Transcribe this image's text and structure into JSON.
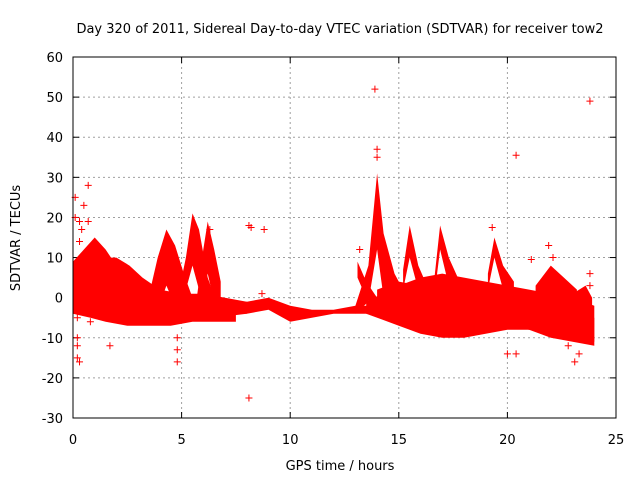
{
  "chart_data": {
    "type": "scatter",
    "title": "Day 320 of 2011, Sidereal Day-to-day VTEC variation (SDTVAR) for receiver tow2",
    "xlabel": "GPS time / hours",
    "ylabel": "SDTVAR / TECUs",
    "xlim": [
      0,
      25
    ],
    "ylim": [
      -30,
      60
    ],
    "xticks": [
      "0",
      "5",
      "10",
      "15",
      "20",
      "25"
    ],
    "yticks": [
      "-30",
      "-20",
      "-10",
      "0",
      "10",
      "20",
      "30",
      "40",
      "50",
      "60"
    ],
    "grid": true,
    "marker": "+",
    "color": "#ff0000",
    "bands": [
      {
        "name": "track-early-a",
        "upper": [
          [
            0,
            9
          ],
          [
            0.5,
            12
          ],
          [
            1,
            15
          ],
          [
            1.5,
            12
          ],
          [
            2,
            8
          ],
          [
            3,
            4
          ],
          [
            4,
            2
          ],
          [
            5,
            1
          ],
          [
            6,
            1
          ],
          [
            7,
            0
          ],
          [
            8,
            -1
          ]
        ],
        "lower": [
          [
            8,
            -4
          ],
          [
            7,
            -4
          ],
          [
            6,
            -4
          ],
          [
            5,
            -5
          ],
          [
            4,
            -6
          ],
          [
            3,
            -6
          ],
          [
            2,
            -5
          ],
          [
            1,
            -4
          ],
          [
            0.5,
            -2
          ],
          [
            0,
            -1
          ]
        ]
      },
      {
        "name": "track-early-b",
        "upper": [
          [
            0,
            6
          ],
          [
            0.6,
            8
          ],
          [
            1.2,
            9
          ],
          [
            1.8,
            8
          ],
          [
            2.5,
            5
          ],
          [
            3.5,
            2
          ],
          [
            4.5,
            0
          ],
          [
            5.5,
            -1
          ],
          [
            6.5,
            -1
          ],
          [
            7.5,
            -2
          ]
        ],
        "lower": [
          [
            7.5,
            -6
          ],
          [
            6.5,
            -6
          ],
          [
            5.5,
            -6
          ],
          [
            4.5,
            -7
          ],
          [
            3.5,
            -7
          ],
          [
            2.5,
            -7
          ],
          [
            1.5,
            -6
          ],
          [
            0.8,
            -5
          ],
          [
            0,
            -4
          ]
        ]
      },
      {
        "name": "track-early-c",
        "upper": [
          [
            1.3,
            10
          ],
          [
            2,
            10
          ],
          [
            2.6,
            8
          ],
          [
            3.2,
            5
          ],
          [
            4,
            2
          ]
        ],
        "lower": [
          [
            4,
            -3
          ],
          [
            3.2,
            -1
          ],
          [
            2.6,
            1
          ],
          [
            2,
            3
          ],
          [
            1.3,
            4
          ]
        ]
      },
      {
        "name": "track-early-d",
        "upper": [
          [
            0,
            1
          ],
          [
            1,
            2
          ],
          [
            2,
            1
          ],
          [
            3,
            -1
          ],
          [
            4,
            -2
          ]
        ],
        "lower": [
          [
            4,
            -6
          ],
          [
            3,
            -6
          ],
          [
            2,
            -5
          ],
          [
            1,
            -4
          ],
          [
            0,
            -4
          ]
        ]
      },
      {
        "name": "spike-4h",
        "upper": [
          [
            3.3,
            -4
          ],
          [
            3.9,
            10
          ],
          [
            4.3,
            17
          ],
          [
            4.7,
            13
          ],
          [
            5.1,
            6
          ],
          [
            5.5,
            0
          ]
        ],
        "lower": [
          [
            5.5,
            -5
          ],
          [
            5.1,
            -4
          ],
          [
            4.7,
            -2
          ],
          [
            4.3,
            3
          ],
          [
            3.9,
            -3
          ],
          [
            3.4,
            -6
          ]
        ]
      },
      {
        "name": "spike-5.5h",
        "upper": [
          [
            4.7,
            -3
          ],
          [
            5.2,
            10
          ],
          [
            5.5,
            21
          ],
          [
            5.8,
            17
          ],
          [
            6.2,
            5
          ],
          [
            6.6,
            -1
          ]
        ],
        "lower": [
          [
            6.6,
            -5
          ],
          [
            6.2,
            -4
          ],
          [
            5.8,
            2
          ],
          [
            5.5,
            8
          ],
          [
            5.2,
            2
          ],
          [
            4.8,
            -5
          ]
        ]
      },
      {
        "name": "spike-6.2h",
        "upper": [
          [
            5.7,
            0
          ],
          [
            6.0,
            12
          ],
          [
            6.2,
            19
          ],
          [
            6.5,
            12
          ],
          [
            6.8,
            4
          ]
        ],
        "lower": [
          [
            6.8,
            -3
          ],
          [
            6.5,
            -1
          ],
          [
            6.2,
            6
          ],
          [
            6.0,
            2
          ],
          [
            5.7,
            -4
          ]
        ]
      },
      {
        "name": "track-mid",
        "upper": [
          [
            6.5,
            -1
          ],
          [
            8,
            -1
          ],
          [
            9,
            0
          ],
          [
            10,
            -2
          ],
          [
            11,
            -3
          ],
          [
            12,
            -3
          ],
          [
            13,
            -2
          ],
          [
            13.6,
            -2
          ]
        ],
        "lower": [
          [
            13.6,
            -4
          ],
          [
            13,
            -4
          ],
          [
            12,
            -4
          ],
          [
            11,
            -5
          ],
          [
            10,
            -6
          ],
          [
            9,
            -3
          ],
          [
            8,
            -4
          ],
          [
            6.5,
            -5
          ]
        ]
      },
      {
        "name": "spike-14h",
        "upper": [
          [
            13,
            -2
          ],
          [
            13.6,
            8
          ],
          [
            14.0,
            31
          ],
          [
            14.3,
            16
          ],
          [
            14.8,
            6
          ],
          [
            15.2,
            2
          ]
        ],
        "lower": [
          [
            15.2,
            -3
          ],
          [
            14.8,
            -2
          ],
          [
            14.3,
            0
          ],
          [
            14.0,
            12
          ],
          [
            13.6,
            -1
          ],
          [
            13,
            -4
          ]
        ]
      },
      {
        "name": "ramp-13.3h",
        "upper": [
          [
            13.1,
            9
          ],
          [
            13.5,
            4
          ],
          [
            14,
            0
          ]
        ],
        "lower": [
          [
            14,
            -3
          ],
          [
            13.5,
            0
          ],
          [
            13.1,
            5
          ]
        ]
      },
      {
        "name": "spike-15.5h",
        "upper": [
          [
            15.2,
            7
          ],
          [
            15.5,
            18
          ],
          [
            15.9,
            8
          ],
          [
            16.3,
            3
          ]
        ],
        "lower": [
          [
            16.3,
            -1
          ],
          [
            15.9,
            2
          ],
          [
            15.5,
            10
          ],
          [
            15.2,
            2
          ]
        ]
      },
      {
        "name": "spike-16.8h",
        "upper": [
          [
            16.6,
            3
          ],
          [
            16.9,
            18
          ],
          [
            17.3,
            10
          ],
          [
            17.8,
            4
          ]
        ],
        "lower": [
          [
            17.8,
            0
          ],
          [
            17.3,
            3
          ],
          [
            16.9,
            12
          ],
          [
            16.6,
            -1
          ]
        ]
      },
      {
        "name": "spike-19.5h",
        "upper": [
          [
            19.1,
            6
          ],
          [
            19.4,
            15
          ],
          [
            19.8,
            8
          ],
          [
            20.3,
            4
          ]
        ],
        "lower": [
          [
            20.3,
            0
          ],
          [
            19.8,
            2
          ],
          [
            19.4,
            10
          ],
          [
            19.1,
            2
          ]
        ]
      },
      {
        "name": "track-late-a",
        "upper": [
          [
            13.5,
            -1
          ],
          [
            15,
            3
          ],
          [
            16,
            5
          ],
          [
            17,
            6
          ],
          [
            18,
            5
          ],
          [
            19,
            4
          ],
          [
            20,
            3
          ],
          [
            21,
            2
          ],
          [
            22,
            1
          ],
          [
            23,
            0
          ],
          [
            24,
            -2
          ]
        ],
        "lower": [
          [
            24,
            -11
          ],
          [
            23,
            -10
          ],
          [
            22,
            -9
          ],
          [
            21,
            -8
          ],
          [
            20,
            -8
          ],
          [
            19,
            -9
          ],
          [
            18,
            -10
          ],
          [
            17,
            -10
          ],
          [
            16,
            -9
          ],
          [
            15,
            -7
          ],
          [
            13.5,
            -4
          ]
        ]
      },
      {
        "name": "track-late-b",
        "upper": [
          [
            14,
            2
          ],
          [
            15,
            4
          ],
          [
            16,
            3
          ],
          [
            17,
            1
          ],
          [
            18,
            0
          ],
          [
            19,
            -1
          ],
          [
            20,
            -2
          ],
          [
            21,
            -2
          ],
          [
            22,
            -3
          ],
          [
            23,
            -4
          ],
          [
            24,
            -5
          ]
        ],
        "lower": [
          [
            24,
            -12
          ],
          [
            23,
            -11
          ],
          [
            22,
            -10
          ],
          [
            21,
            -8
          ],
          [
            20,
            -7
          ],
          [
            19,
            -7
          ],
          [
            18,
            -7
          ],
          [
            17,
            -8
          ],
          [
            16,
            -8
          ],
          [
            15,
            -6
          ],
          [
            14,
            -4
          ]
        ]
      },
      {
        "name": "late-22h",
        "upper": [
          [
            21.3,
            3
          ],
          [
            22,
            8
          ],
          [
            22.6,
            5
          ],
          [
            23.2,
            2
          ]
        ],
        "lower": [
          [
            23.2,
            -5
          ],
          [
            22.6,
            -3
          ],
          [
            22,
            0
          ],
          [
            21.3,
            -2
          ]
        ]
      },
      {
        "name": "late-23.5h",
        "upper": [
          [
            23.0,
            1
          ],
          [
            23.6,
            3
          ],
          [
            23.9,
            0
          ]
        ],
        "lower": [
          [
            23.9,
            -9
          ],
          [
            23.6,
            -5
          ],
          [
            23.0,
            -3
          ]
        ]
      }
    ],
    "points": [
      [
        0.1,
        25
      ],
      [
        0.1,
        20
      ],
      [
        0.3,
        19
      ],
      [
        0.4,
        17
      ],
      [
        0.3,
        14
      ],
      [
        0.5,
        23
      ],
      [
        0.7,
        28
      ],
      [
        0.7,
        19
      ],
      [
        0.2,
        -5
      ],
      [
        0.2,
        -10
      ],
      [
        0.2,
        -12
      ],
      [
        0.2,
        -15
      ],
      [
        0.3,
        -16
      ],
      [
        0.8,
        -6
      ],
      [
        1.7,
        -12
      ],
      [
        1.6,
        -5
      ],
      [
        4.8,
        -10
      ],
      [
        4.8,
        -13
      ],
      [
        4.8,
        -16
      ],
      [
        6.3,
        17
      ],
      [
        8.1,
        18
      ],
      [
        8.2,
        17.5
      ],
      [
        8.1,
        -25
      ],
      [
        8.8,
        17
      ],
      [
        8.7,
        1
      ],
      [
        13.2,
        12
      ],
      [
        13.9,
        52
      ],
      [
        14.0,
        37
      ],
      [
        14.0,
        35
      ],
      [
        20.0,
        -14
      ],
      [
        20.4,
        -14
      ],
      [
        20.4,
        35.5
      ],
      [
        21.1,
        9.5
      ],
      [
        21.9,
        13
      ],
      [
        22.1,
        10
      ],
      [
        22.8,
        -12
      ],
      [
        23.1,
        -16
      ],
      [
        23.3,
        -14
      ],
      [
        23.8,
        49
      ],
      [
        23.8,
        6
      ],
      [
        23.8,
        3
      ],
      [
        21.7,
        -6
      ],
      [
        19.3,
        17.5
      ]
    ]
  }
}
